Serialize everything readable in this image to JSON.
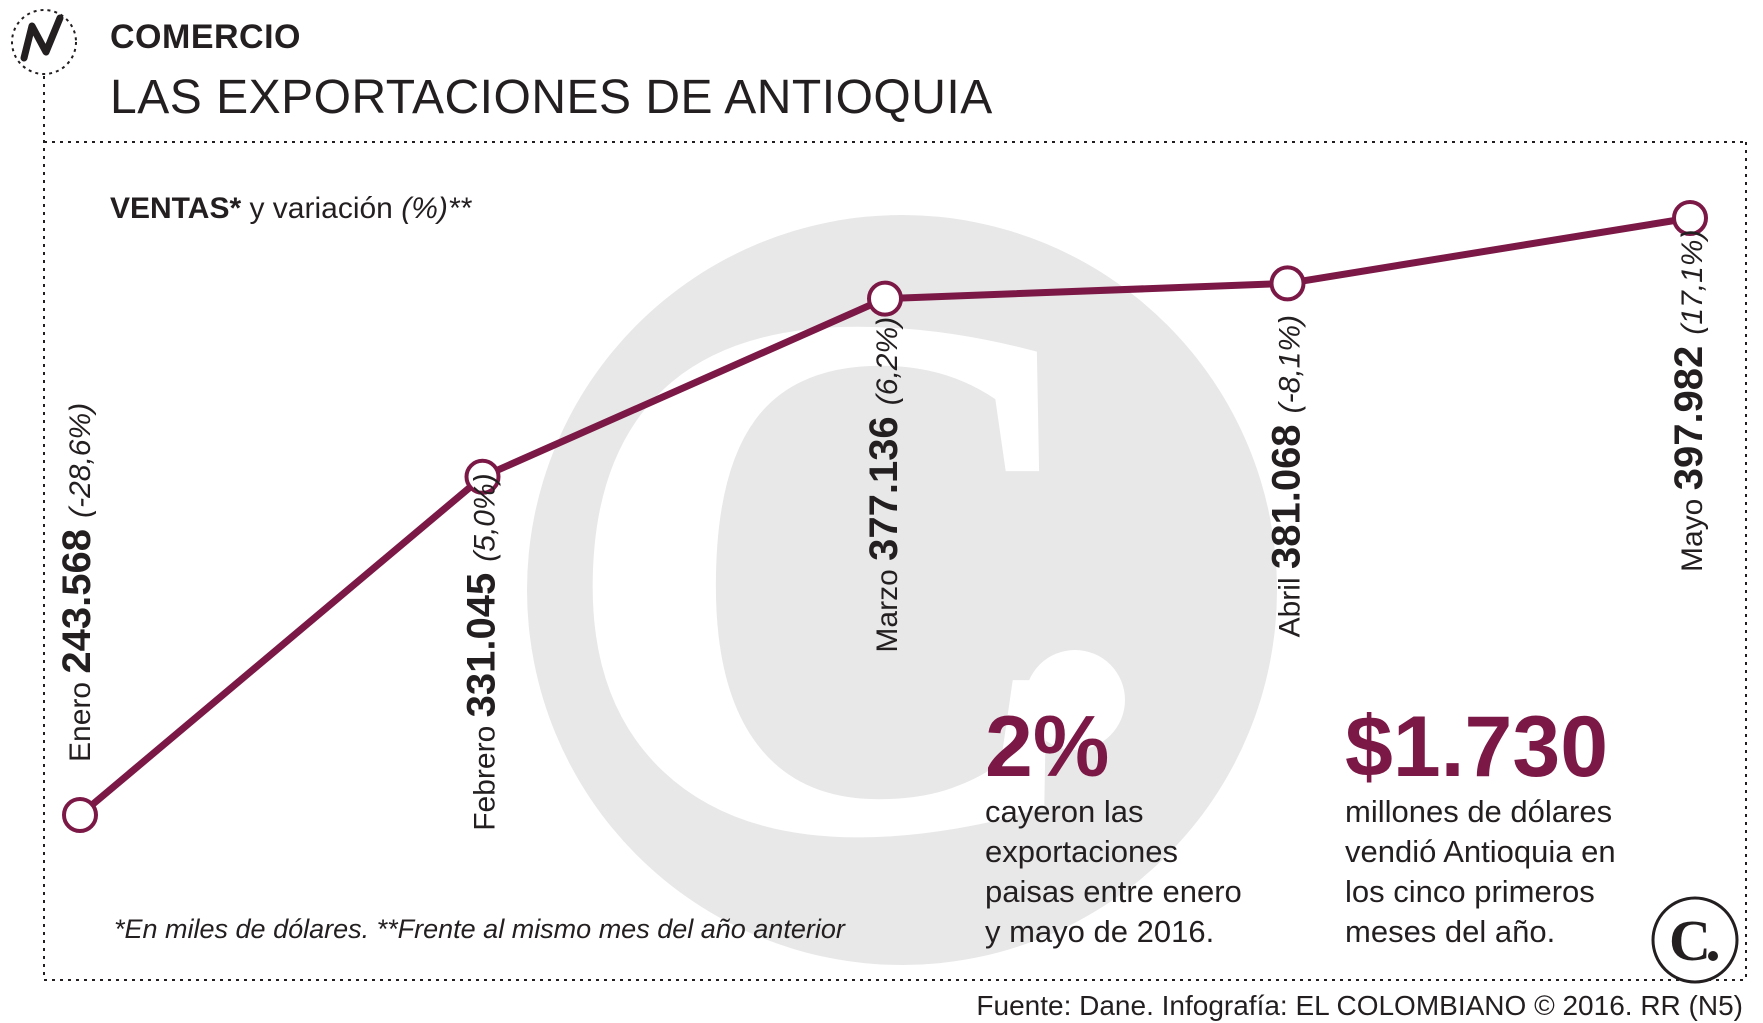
{
  "header": {
    "section": "COMERCIO",
    "title": "LAS EXPORTACIONES DE ANTIOQUIA",
    "section_icon": "line-trend-icon"
  },
  "legend": {
    "bold": "VENTAS*",
    "normal": " y variación ",
    "italic": "(%)**"
  },
  "footnote": "*En miles de dólares. **Frente al mismo mes del año anterior",
  "source": "Fuente: Dane. Infografía: EL COLOMBIANO © 2016. RR (N5)",
  "stats": [
    {
      "value": "2%",
      "lines": [
        "cayeron las",
        "exportaciones",
        "paisas entre enero",
        "y mayo de 2016."
      ]
    },
    {
      "value": "$1.730",
      "lines": [
        "millones de dólares",
        "vendió Antioquia en",
        "los cinco primeros",
        "meses del año."
      ]
    }
  ],
  "colors": {
    "line": "#7b1846",
    "accent": "#7b1846",
    "text": "#231f20",
    "watermark_circle": "#e8e8e8",
    "watermark_letter": "#ffffff"
  },
  "watermark_icon": "el-colombiano-c-logo",
  "corner_logo": "el-colombiano-c-logo",
  "chart_data": {
    "type": "line",
    "categories": [
      "Enero",
      "Febrero",
      "Marzo",
      "Abril",
      "Mayo"
    ],
    "values": [
      243568,
      331045,
      377136,
      381068,
      397982
    ],
    "value_labels": [
      "243.568",
      "331.045",
      "377.136",
      "381.068",
      "397.982"
    ],
    "variation_labels": [
      "(-28,6%)",
      "(5,0%)",
      "(6,2%)",
      "(-8,1%)",
      "(17,1%)"
    ],
    "variation": [
      -28.6,
      5.0,
      6.2,
      -8.1,
      17.1
    ],
    "ylim": [
      243568,
      397982
    ],
    "grid": false,
    "markers": "hollow-circle"
  }
}
